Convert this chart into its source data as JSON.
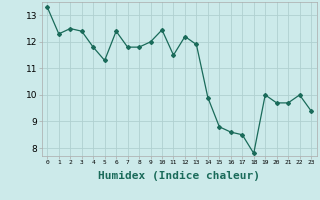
{
  "x": [
    0,
    1,
    2,
    3,
    4,
    5,
    6,
    7,
    8,
    9,
    10,
    11,
    12,
    13,
    14,
    15,
    16,
    17,
    18,
    19,
    20,
    21,
    22,
    23
  ],
  "y": [
    13.3,
    12.3,
    12.5,
    12.4,
    11.8,
    11.3,
    12.4,
    11.8,
    11.8,
    12.0,
    12.45,
    11.5,
    12.2,
    11.9,
    9.9,
    8.8,
    8.6,
    8.5,
    7.8,
    10.0,
    9.7,
    9.7,
    10.0,
    9.4
  ],
  "xlabel": "Humidex (Indice chaleur)",
  "ylim": [
    7.7,
    13.5
  ],
  "xlim": [
    -0.5,
    23.5
  ],
  "line_color": "#1a6b5a",
  "bg_color": "#cceaea",
  "grid_color": "#b0d0d0",
  "xlabel_fontsize": 8,
  "yticks": [
    8,
    9,
    10,
    11,
    12,
    13
  ],
  "xticks": [
    0,
    1,
    2,
    3,
    4,
    5,
    6,
    7,
    8,
    9,
    10,
    11,
    12,
    13,
    14,
    15,
    16,
    17,
    18,
    19,
    20,
    21,
    22,
    23
  ]
}
